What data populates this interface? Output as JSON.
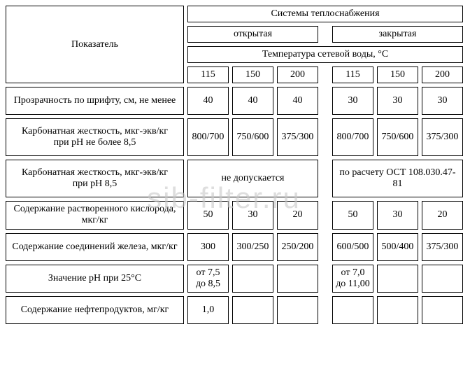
{
  "header": {
    "param_label": "Показатель",
    "systems": "Системы теплоснабжения",
    "open": "открытая",
    "closed": "закрытая",
    "temp_row": "Температура сетевой воды, °С",
    "temps": [
      "115",
      "150",
      "200",
      "115",
      "150",
      "200"
    ]
  },
  "rows": [
    {
      "label": "Прозрачность по шрифту, см, не менее",
      "kind": "six",
      "v": [
        "40",
        "40",
        "40",
        "30",
        "30",
        "30"
      ]
    },
    {
      "label": "Карбонатная жесткость, мкг-экв/кг\nпри pH не более 8,5",
      "kind": "six",
      "v": [
        "800/700",
        "750/600",
        "375/300",
        "800/700",
        "750/600",
        "375/300"
      ]
    },
    {
      "label": "Карбонатная жесткость, мкг-экв/кг\nпри pH 8,5",
      "kind": "twospan",
      "left": "не допускается",
      "right": "по расчету ОСТ 108.030.47-81"
    },
    {
      "label": "Содержание растворенного кислорода, мкг/кг",
      "kind": "six",
      "v": [
        "50",
        "30",
        "20",
        "50",
        "30",
        "20"
      ]
    },
    {
      "label": "Содержание соединений железа, мкг/кг",
      "kind": "six",
      "v": [
        "300",
        "300/250",
        "250/200",
        "600/500",
        "500/400",
        "375/300"
      ]
    },
    {
      "label": "Значение pH при 25°С",
      "kind": "six",
      "v": [
        "от 7,5 до 8,5",
        "",
        "",
        "от 7,0 до 11,00",
        "",
        ""
      ]
    },
    {
      "label": "Содержание нефтепродуктов, мг/кг",
      "kind": "six",
      "v": [
        "1,0",
        "",
        "",
        "",
        "",
        ""
      ]
    }
  ],
  "watermark": "sib-filter.ru"
}
